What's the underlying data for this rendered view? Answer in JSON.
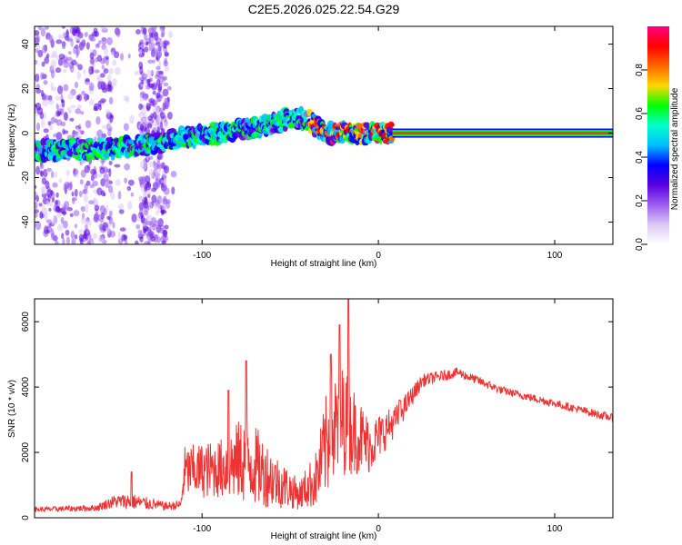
{
  "figure": {
    "title": "C2E5.2026.025.22.54.G29"
  },
  "chart_data": [
    {
      "type": "heatmap",
      "title": "C2E5.2026.025.22.54.G29",
      "xlabel": "Height of straight line (km)",
      "ylabel": "Frequency (Hz)",
      "xlim": [
        -195,
        133
      ],
      "ylim": [
        -50,
        48
      ],
      "xticks": [
        -100,
        0,
        100
      ],
      "yticks": [
        -40,
        -20,
        0,
        20,
        40
      ],
      "colorbar": {
        "label": "Normalized spectral amplitude",
        "range": [
          0,
          1
        ],
        "ticks": [
          "0.0",
          "0.2",
          "0.4",
          "0.6",
          "0.8"
        ],
        "colors": [
          "#ffffff",
          "#dcc8f5",
          "#9b5cf0",
          "#5a00e0",
          "#0000ff",
          "#00bfff",
          "#00ffcc",
          "#00ff00",
          "#ffd700",
          "#ff6600",
          "#ff0000",
          "#ff0080"
        ]
      },
      "ridge": [
        {
          "x": -195,
          "f": -8
        },
        {
          "x": -160,
          "f": -7
        },
        {
          "x": -140,
          "f": -6
        },
        {
          "x": -120,
          "f": -4
        },
        {
          "x": -110,
          "f": -2
        },
        {
          "x": -90,
          "f": 0
        },
        {
          "x": -75,
          "f": 2
        },
        {
          "x": -60,
          "f": 4
        },
        {
          "x": -50,
          "f": 7
        },
        {
          "x": -40,
          "f": 6
        },
        {
          "x": -35,
          "f": 3
        },
        {
          "x": -30,
          "f": 0
        },
        {
          "x": -20,
          "f": 0
        },
        {
          "x": 0,
          "f": 0
        },
        {
          "x": 10,
          "f": 0
        },
        {
          "x": 133,
          "f": 0
        }
      ],
      "steady_line": {
        "x_start": 8,
        "x_end": 133,
        "f": 0
      }
    },
    {
      "type": "line",
      "xlabel": "Height of straight line (km)",
      "ylabel": "SNR (10 * v/v)",
      "xlim": [
        -195,
        133
      ],
      "ylim": [
        0,
        6700
      ],
      "xticks": [
        -100,
        0,
        100
      ],
      "yticks": [
        0,
        2000,
        4000,
        6000
      ],
      "color": "#ee3333",
      "envelope": [
        {
          "x": -195,
          "y": 250,
          "spread": 150
        },
        {
          "x": -160,
          "y": 300,
          "spread": 200
        },
        {
          "x": -150,
          "y": 500,
          "spread": 400
        },
        {
          "x": -140,
          "y": 500,
          "spread": 500
        },
        {
          "x": -120,
          "y": 350,
          "spread": 250
        },
        {
          "x": -112,
          "y": 400,
          "spread": 300
        },
        {
          "x": -110,
          "y": 1400,
          "spread": 1600
        },
        {
          "x": -90,
          "y": 1500,
          "spread": 1800
        },
        {
          "x": -75,
          "y": 1800,
          "spread": 2800
        },
        {
          "x": -60,
          "y": 1200,
          "spread": 1800
        },
        {
          "x": -45,
          "y": 700,
          "spread": 900
        },
        {
          "x": -35,
          "y": 1200,
          "spread": 1800
        },
        {
          "x": -28,
          "y": 2500,
          "spread": 3600
        },
        {
          "x": -20,
          "y": 3000,
          "spread": 3400
        },
        {
          "x": -5,
          "y": 2200,
          "spread": 1700
        },
        {
          "x": 10,
          "y": 3000,
          "spread": 900
        },
        {
          "x": 25,
          "y": 4200,
          "spread": 400
        },
        {
          "x": 45,
          "y": 4450,
          "spread": 300
        },
        {
          "x": 70,
          "y": 3900,
          "spread": 250
        },
        {
          "x": 100,
          "y": 3500,
          "spread": 250
        },
        {
          "x": 133,
          "y": 3050,
          "spread": 250
        }
      ],
      "spikes": [
        {
          "x": -140,
          "y": 1400
        },
        {
          "x": -75,
          "y": 4800
        },
        {
          "x": -85,
          "y": 3900
        },
        {
          "x": -27,
          "y": 5000
        },
        {
          "x": -17,
          "y": 6700
        },
        {
          "x": -22,
          "y": 5900
        },
        {
          "x": 12,
          "y": 3600
        }
      ]
    }
  ]
}
